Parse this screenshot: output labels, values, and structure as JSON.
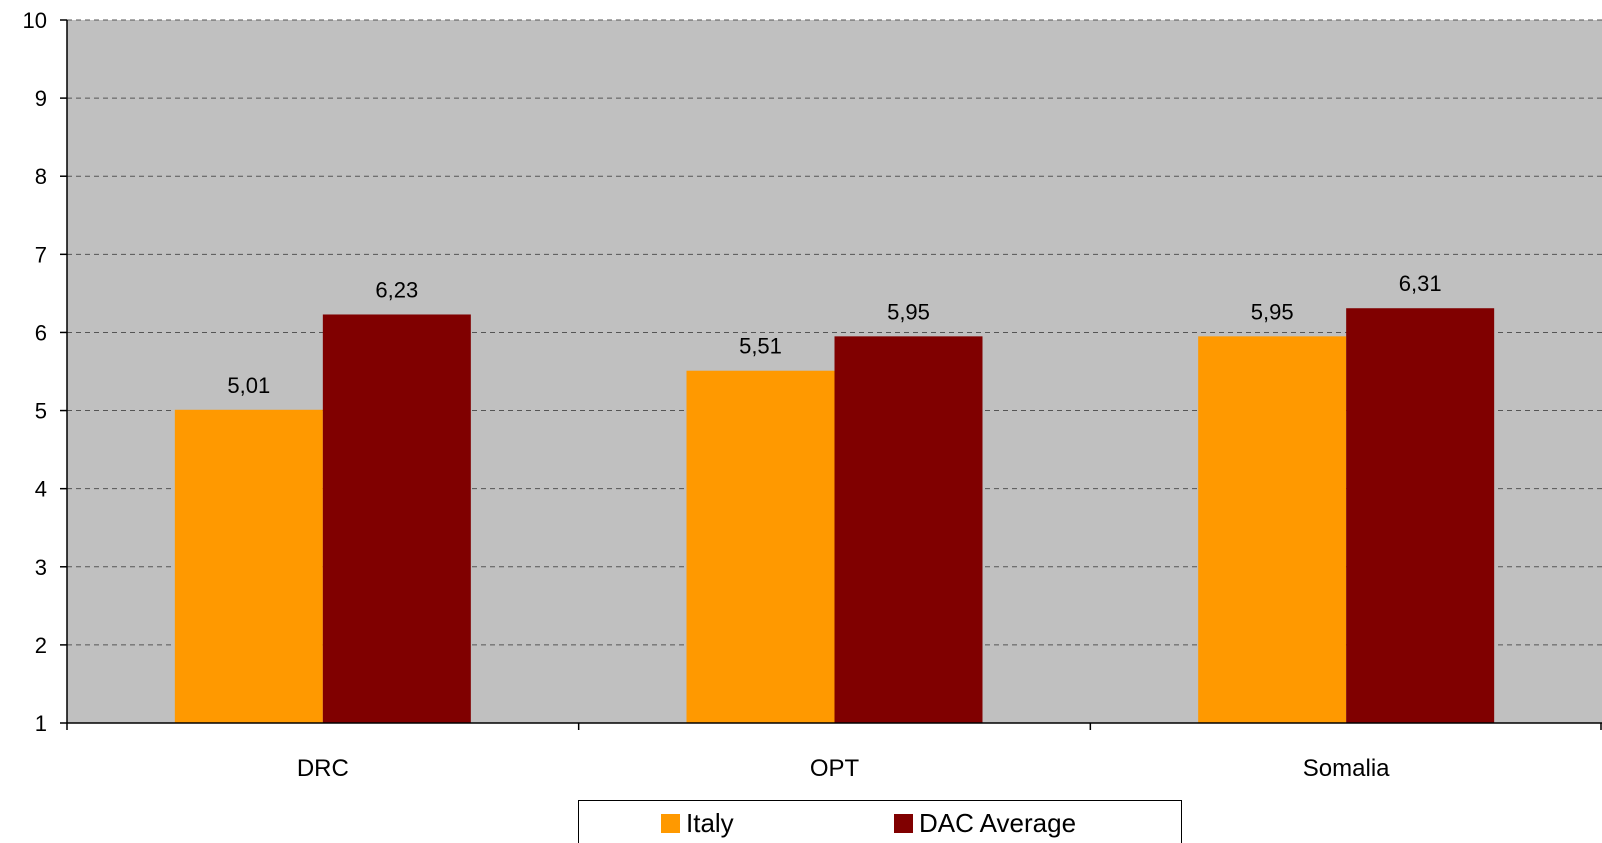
{
  "chart_data": {
    "type": "bar",
    "categories": [
      "DRC",
      "OPT",
      "Somalia"
    ],
    "series": [
      {
        "name": "Italy",
        "color": "#ff9900",
        "values": [
          5.01,
          5.51,
          5.95
        ],
        "labels": [
          "5,01",
          "5,51",
          "5,95"
        ]
      },
      {
        "name": "DAC Average",
        "color": "#800000",
        "values": [
          6.23,
          5.95,
          6.31
        ],
        "labels": [
          "6,23",
          "5,95",
          "6,31"
        ]
      }
    ],
    "yticks": [
      "1",
      "2",
      "3",
      "4",
      "5",
      "6",
      "7",
      "8",
      "9",
      "10"
    ],
    "ylim": [
      1,
      10
    ],
    "grid": true,
    "plot_background": "#c0c0c0",
    "legend_position": "bottom"
  }
}
